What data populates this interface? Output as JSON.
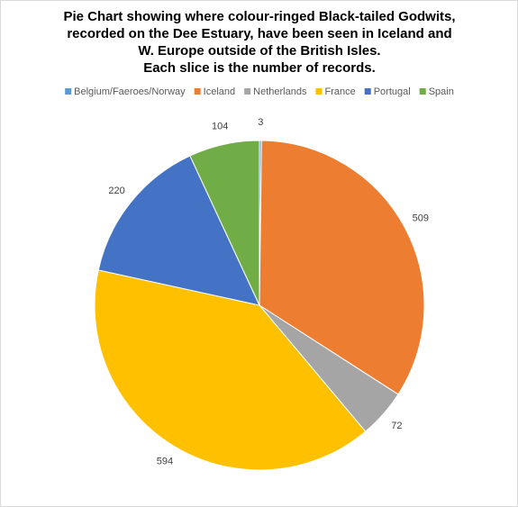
{
  "chart_data": {
    "type": "pie",
    "title": [
      "Pie Chart showing where colour-ringed Black-tailed Godwits,",
      "recorded on the Dee Estuary, have been seen in Iceland and",
      "W. Europe outside of the British Isles.",
      "Each slice is the number of records."
    ],
    "categories": [
      "Belgium/Faeroes/Norway",
      "Iceland",
      "Netherlands",
      "France",
      "Portugal",
      "Spain"
    ],
    "values": [
      3,
      509,
      72,
      594,
      220,
      104
    ],
    "colors": [
      "#5b9bd5",
      "#ed7d31",
      "#a5a5a5",
      "#ffc000",
      "#4472c4",
      "#70ad47"
    ],
    "legend": "top"
  }
}
